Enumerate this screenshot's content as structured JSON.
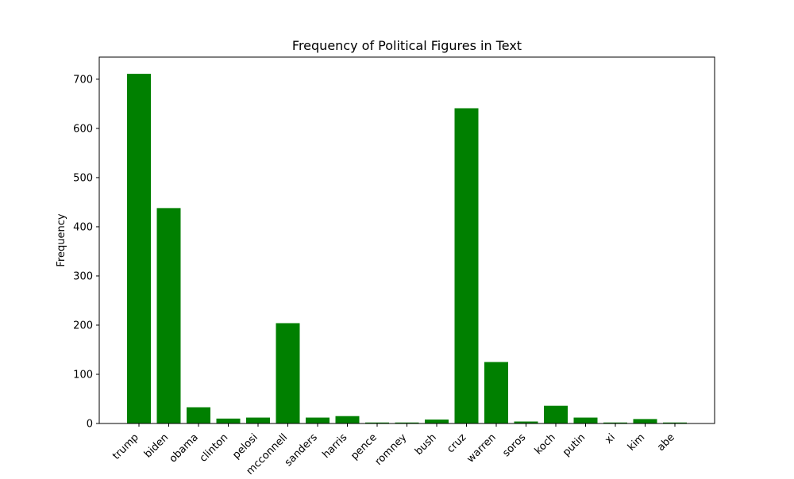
{
  "chart_data": {
    "type": "bar",
    "title": "Frequency of Political Figures in Text",
    "xlabel": "",
    "ylabel": "Frequency",
    "categories": [
      "trump",
      "biden",
      "obama",
      "clinton",
      "pelosi",
      "mcconnell",
      "sanders",
      "harris",
      "pence",
      "romney",
      "bush",
      "cruz",
      "warren",
      "soros",
      "koch",
      "putin",
      "xi",
      "kim",
      "abe"
    ],
    "values": [
      711,
      438,
      33,
      10,
      12,
      204,
      12,
      15,
      2,
      2,
      8,
      641,
      125,
      4,
      36,
      12,
      2,
      9,
      2
    ],
    "ylim": [
      0,
      745
    ],
    "yticks": [
      0,
      100,
      200,
      300,
      400,
      500,
      600,
      700
    ],
    "bar_color": "#008000",
    "grid": false,
    "legend": "none"
  }
}
